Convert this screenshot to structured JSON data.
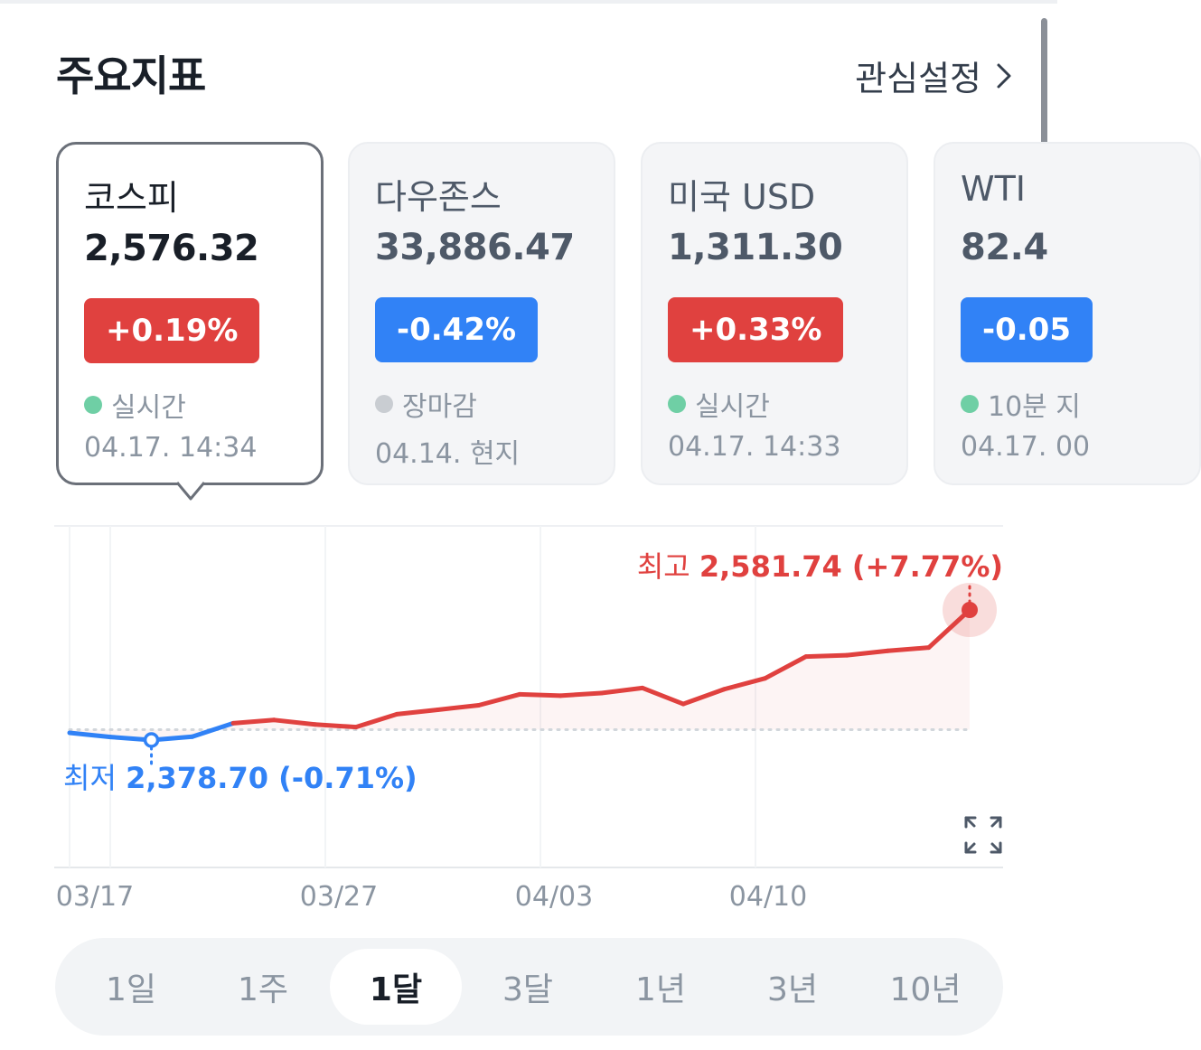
{
  "header": {
    "title": "주요지표",
    "link_label": "관심설정"
  },
  "cards": [
    {
      "name": "코스피",
      "value": "2,576.32",
      "change": "+0.19%",
      "direction": "up",
      "status": "실시간",
      "status_color": "#6fcfa5",
      "time": "04.17. 14:34",
      "active": true
    },
    {
      "name": "다우존스",
      "value": "33,886.47",
      "change": "-0.42%",
      "direction": "down",
      "status": "장마감",
      "status_color": "#c9cdd2",
      "time": "04.14. 현지",
      "active": false
    },
    {
      "name": "미국 USD",
      "value": "1,311.30",
      "change": "+0.33%",
      "direction": "up",
      "status": "실시간",
      "status_color": "#6fcfa5",
      "time": "04.17. 14:33",
      "active": false
    },
    {
      "name": "WTI",
      "value": "82.4",
      "change": "-0.05",
      "direction": "down",
      "status": "10분 지",
      "status_color": "#6fcfa5",
      "time": "04.17. 00",
      "active": false
    }
  ],
  "colors": {
    "up": "#e0413f",
    "down": "#3182f6",
    "text_primary": "#191f28",
    "text_secondary": "#8b95a1"
  },
  "chart_data": {
    "type": "line",
    "series": [
      {
        "values": [
          2390.0,
          2383.5,
          2378.7,
          2384.0,
          2405.0,
          2410.0,
          2403.0,
          2399.0,
          2419.0,
          2426.0,
          2433.0,
          2450.0,
          2448.0,
          2452.0,
          2460.0,
          2435.0,
          2458.0,
          2475.0,
          2509.0,
          2511.0,
          2518.0,
          2523.0,
          2581.74
        ]
      }
    ],
    "baseline": 2395.0,
    "x_ticks": [
      "03/17",
      "03/27",
      "04/03",
      "04/10"
    ],
    "high": {
      "label": "최고",
      "value": "2,581.74 (+7.77%)"
    },
    "low": {
      "label": "최저",
      "value": "2,378.70 (-0.71%)"
    }
  },
  "periods": [
    "1일",
    "1주",
    "1달",
    "3달",
    "1년",
    "3년",
    "10년"
  ],
  "active_period": "1달",
  "icons": {
    "expand": "expand-icon",
    "chevron": "chevron-right-icon"
  }
}
